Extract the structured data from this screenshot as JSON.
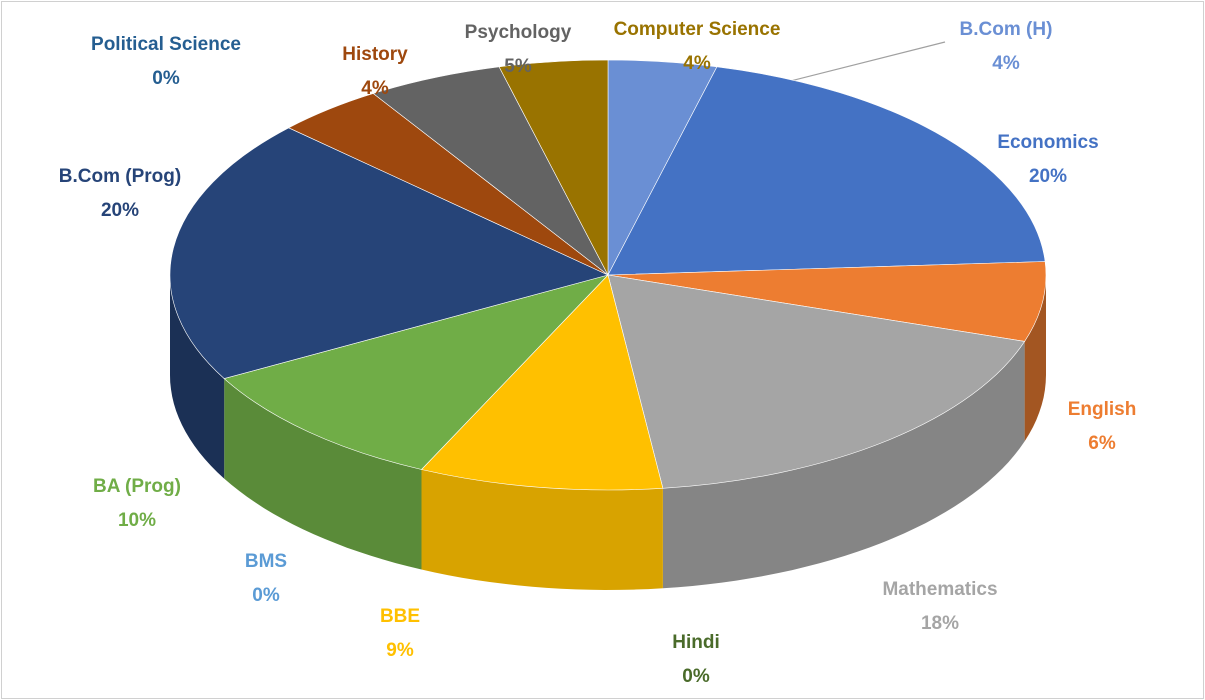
{
  "chart_data": {
    "type": "pie3d",
    "categories": [
      "B.Com (H)",
      "Economics",
      "English",
      "Mathematics",
      "Hindi",
      "BBE",
      "BMS",
      "BA (Prog)",
      "B.Com (Prog)",
      "Political Science",
      "History",
      "Psychology",
      "Computer Science"
    ],
    "values": [
      4,
      20,
      6,
      18,
      0,
      9,
      0,
      10,
      20,
      0,
      4,
      5,
      4
    ],
    "value_labels": [
      "4%",
      "20%",
      "6%",
      "18%",
      "0%",
      "9%",
      "0%",
      "10%",
      "20%",
      "0%",
      "4%",
      "5%",
      "4%"
    ],
    "colors": [
      "#6a8fd4",
      "#4472c4",
      "#ed7d31",
      "#a5a5a5",
      "#4a6b2a",
      "#ffc000",
      "#5b9bd5",
      "#70ad47",
      "#264478",
      "#255e91",
      "#9e480e",
      "#636363",
      "#997300"
    ]
  }
}
